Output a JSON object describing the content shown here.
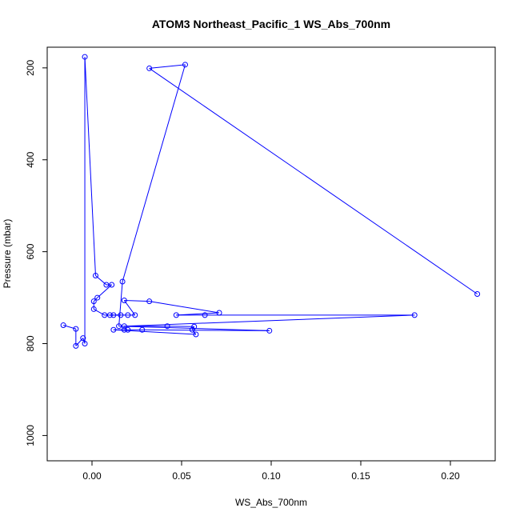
{
  "chart_data": {
    "type": "line",
    "title": "ATOM3 Northeast_Pacific_1 WS_Abs_700nm",
    "xlabel": "WS_Abs_700nm",
    "ylabel": "Pressure (mbar)",
    "xlim": [
      -0.025,
      0.225
    ],
    "ylim": [
      1055,
      155
    ],
    "y_reversed": true,
    "x_ticks": [
      0.0,
      0.05,
      0.1,
      0.15,
      0.2
    ],
    "x_tick_labels": [
      "0.00",
      "0.05",
      "0.10",
      "0.15",
      "0.20"
    ],
    "y_ticks": [
      200,
      400,
      600,
      800,
      1000
    ],
    "y_tick_labels": [
      "200",
      "400",
      "600",
      "800",
      "1000"
    ],
    "grid": false,
    "legend": "none",
    "series_color": "#0000ff",
    "marker": "open-circle",
    "series": [
      {
        "points": [
          [
            -0.016,
            760
          ],
          [
            -0.009,
            768
          ],
          [
            -0.009,
            805
          ],
          [
            -0.005,
            788
          ],
          [
            -0.004,
            800
          ],
          [
            -0.004,
            176
          ],
          [
            0.002,
            652
          ],
          [
            0.008,
            672
          ],
          [
            0.011,
            672
          ],
          [
            0.003,
            700
          ],
          [
            0.001,
            708
          ],
          [
            0.001,
            725
          ],
          [
            0.007,
            738
          ],
          [
            0.012,
            738
          ],
          [
            0.016,
            738
          ],
          [
            0.01,
            738
          ],
          [
            0.02,
            738
          ],
          [
            0.024,
            738
          ],
          [
            0.018,
            706
          ],
          [
            0.032,
            708
          ],
          [
            0.071,
            733
          ],
          [
            0.047,
            738
          ],
          [
            0.063,
            738
          ],
          [
            0.18,
            738
          ],
          [
            0.018,
            762
          ],
          [
            0.042,
            762
          ],
          [
            0.057,
            763
          ],
          [
            0.056,
            770
          ],
          [
            0.058,
            780
          ],
          [
            0.012,
            770
          ],
          [
            0.018,
            770
          ],
          [
            0.02,
            770
          ],
          [
            0.028,
            770
          ],
          [
            0.099,
            772
          ],
          [
            0.015,
            762
          ],
          [
            0.017,
            665
          ],
          [
            0.052,
            193
          ],
          [
            0.032,
            201
          ],
          [
            0.215,
            692
          ]
        ]
      }
    ]
  }
}
